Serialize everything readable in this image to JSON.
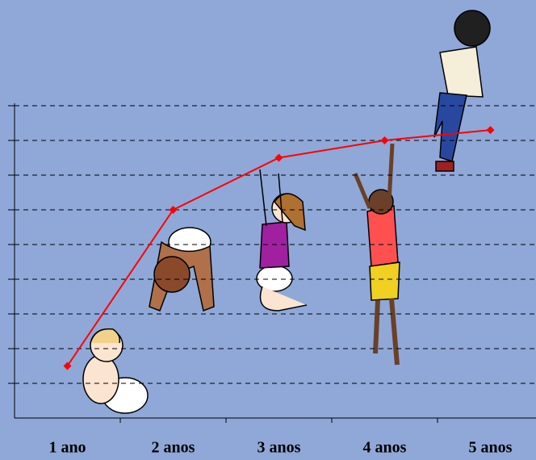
{
  "chart_data": {
    "type": "line",
    "categories": [
      "1 ano",
      "2 anos",
      "3 anos",
      "4 anos",
      "5 anos"
    ],
    "values": [
      1.5,
      6,
      7.5,
      8,
      8.3
    ],
    "color": "#ff0000",
    "ylim": [
      0,
      9
    ],
    "yticks": [
      1,
      2,
      3,
      4,
      5,
      6,
      7,
      8,
      9
    ],
    "grid": true
  }
}
